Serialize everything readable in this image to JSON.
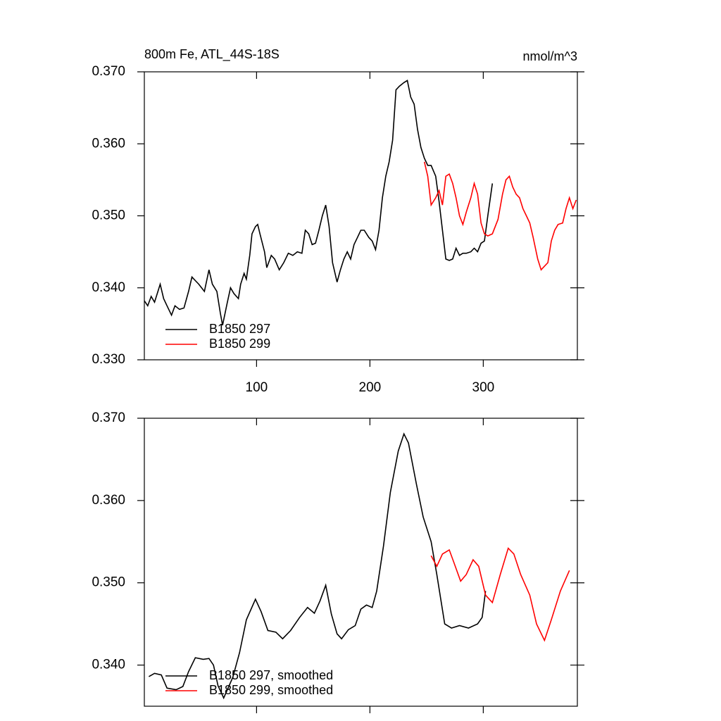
{
  "chart_data": [
    {
      "type": "line",
      "title": "800m Fe, ATL_44S-18S",
      "units": "nmol/m^3",
      "xlim": [
        1,
        383
      ],
      "xticks": [
        100,
        200,
        300
      ],
      "ylim": [
        0.33,
        0.37
      ],
      "yticks": [
        {
          "value": 0.33,
          "label": "0.330"
        },
        {
          "value": 0.34,
          "label": "0.340"
        },
        {
          "value": 0.35,
          "label": "0.350"
        },
        {
          "value": 0.36,
          "label": "0.360"
        },
        {
          "value": 0.37,
          "label": "0.370"
        }
      ],
      "legend": "bottom-left",
      "series": [
        {
          "name": "B1850 297",
          "color": "#000000",
          "x": [
            1,
            4,
            7,
            10,
            13,
            15,
            18,
            21,
            25,
            28,
            32,
            36,
            40,
            43,
            46,
            49,
            54,
            58,
            61,
            65,
            68,
            70,
            74,
            77,
            80,
            84,
            86,
            89,
            91,
            94,
            96,
            99,
            101,
            103,
            107,
            109,
            113,
            116,
            120,
            124,
            128,
            132,
            136,
            140,
            143,
            146,
            149,
            152,
            155,
            158,
            161,
            164,
            167,
            171,
            174,
            177,
            180,
            183,
            186,
            189,
            192,
            195,
            199,
            202,
            205,
            208,
            211,
            214,
            217,
            220,
            223,
            226,
            230,
            233,
            236,
            239,
            242,
            245,
            248,
            251,
            254,
            258,
            261,
            264,
            267,
            270,
            273,
            276,
            279,
            282,
            285,
            289,
            292,
            295,
            298,
            301,
            304,
            308
          ],
          "values": [
            0.3382,
            0.3375,
            0.3388,
            0.338,
            0.3395,
            0.3405,
            0.3385,
            0.3375,
            0.3362,
            0.3375,
            0.337,
            0.3372,
            0.3395,
            0.3415,
            0.341,
            0.3405,
            0.3395,
            0.3425,
            0.3405,
            0.3395,
            0.3365,
            0.3348,
            0.3378,
            0.34,
            0.3392,
            0.3385,
            0.3405,
            0.342,
            0.3412,
            0.3445,
            0.3475,
            0.3485,
            0.3488,
            0.3475,
            0.345,
            0.3428,
            0.3445,
            0.344,
            0.3425,
            0.3435,
            0.3448,
            0.3445,
            0.345,
            0.3448,
            0.348,
            0.3475,
            0.346,
            0.3462,
            0.348,
            0.35,
            0.3515,
            0.3485,
            0.3435,
            0.3408,
            0.3425,
            0.344,
            0.345,
            0.344,
            0.346,
            0.347,
            0.348,
            0.348,
            0.347,
            0.3465,
            0.3453,
            0.348,
            0.3525,
            0.3555,
            0.3575,
            0.3605,
            0.3675,
            0.368,
            0.3685,
            0.3688,
            0.3665,
            0.3655,
            0.362,
            0.3595,
            0.358,
            0.357,
            0.357,
            0.3555,
            0.352,
            0.348,
            0.344,
            0.3438,
            0.344,
            0.3455,
            0.3445,
            0.3448,
            0.3448,
            0.345,
            0.3455,
            0.345,
            0.3462,
            0.3465,
            0.35,
            0.3545
          ]
        },
        {
          "name": "B1850 299",
          "color": "#ff0000",
          "x": [
            248,
            251,
            254,
            258,
            261,
            264,
            267,
            270,
            273,
            276,
            279,
            282,
            285,
            289,
            292,
            295,
            298,
            301,
            304,
            308,
            313,
            317,
            320,
            323,
            326,
            329,
            332,
            335,
            338,
            341,
            344,
            348,
            351,
            354,
            357,
            360,
            363,
            366,
            370,
            373,
            376,
            379,
            382
          ],
          "values": [
            0.3575,
            0.3555,
            0.3515,
            0.3525,
            0.3535,
            0.3515,
            0.3555,
            0.3558,
            0.3545,
            0.3525,
            0.35,
            0.3488,
            0.3505,
            0.3525,
            0.3545,
            0.353,
            0.349,
            0.3475,
            0.3472,
            0.3475,
            0.3495,
            0.353,
            0.355,
            0.3555,
            0.354,
            0.353,
            0.3525,
            0.351,
            0.35,
            0.349,
            0.347,
            0.344,
            0.3425,
            0.343,
            0.3435,
            0.3465,
            0.348,
            0.3488,
            0.349,
            0.351,
            0.3525,
            0.351,
            0.3522
          ]
        }
      ]
    },
    {
      "type": "line",
      "xlim": [
        1,
        383
      ],
      "xticks": [
        100,
        200,
        300
      ],
      "ylim": [
        0.335,
        0.37
      ],
      "yticks": [
        {
          "value": 0.34,
          "label": "0.340"
        },
        {
          "value": 0.35,
          "label": "0.350"
        },
        {
          "value": 0.36,
          "label": "0.360"
        },
        {
          "value": 0.37,
          "label": "0.370"
        }
      ],
      "legend": "bottom-left",
      "series": [
        {
          "name": "B1850 297, smoothed",
          "color": "#000000",
          "x": [
            5,
            10,
            16,
            21,
            29,
            35,
            40,
            46,
            53,
            58,
            62,
            66,
            71,
            79,
            85,
            91,
            99,
            104,
            110,
            117,
            123,
            130,
            138,
            145,
            151,
            156,
            161,
            166,
            171,
            175,
            181,
            187,
            192,
            197,
            202,
            206,
            212,
            218,
            225,
            230,
            234,
            241,
            247,
            254,
            259,
            266,
            272,
            279,
            287,
            295,
            299,
            302
          ],
          "values": [
            0.3386,
            0.339,
            0.3388,
            0.3372,
            0.337,
            0.3374,
            0.3392,
            0.3409,
            0.3407,
            0.3408,
            0.34,
            0.3375,
            0.336,
            0.3385,
            0.3415,
            0.3455,
            0.348,
            0.3465,
            0.3442,
            0.344,
            0.3432,
            0.3442,
            0.3458,
            0.347,
            0.3463,
            0.3478,
            0.3497,
            0.3462,
            0.3438,
            0.3432,
            0.3443,
            0.3448,
            0.3468,
            0.3473,
            0.347,
            0.349,
            0.3545,
            0.361,
            0.366,
            0.3681,
            0.367,
            0.362,
            0.358,
            0.355,
            0.351,
            0.345,
            0.3445,
            0.3448,
            0.3445,
            0.345,
            0.3458,
            0.349
          ]
        },
        {
          "name": "B1850 299, smoothed",
          "color": "#ff0000",
          "x": [
            254,
            259,
            264,
            270,
            274,
            280,
            285,
            291,
            296,
            302,
            308,
            315,
            322,
            327,
            333,
            341,
            347,
            354,
            360,
            368,
            376
          ],
          "values": [
            0.3533,
            0.352,
            0.3535,
            0.354,
            0.3525,
            0.3502,
            0.351,
            0.3528,
            0.352,
            0.3485,
            0.3476,
            0.351,
            0.3542,
            0.3535,
            0.351,
            0.3485,
            0.345,
            0.343,
            0.3455,
            0.349,
            0.3515
          ]
        }
      ]
    }
  ]
}
